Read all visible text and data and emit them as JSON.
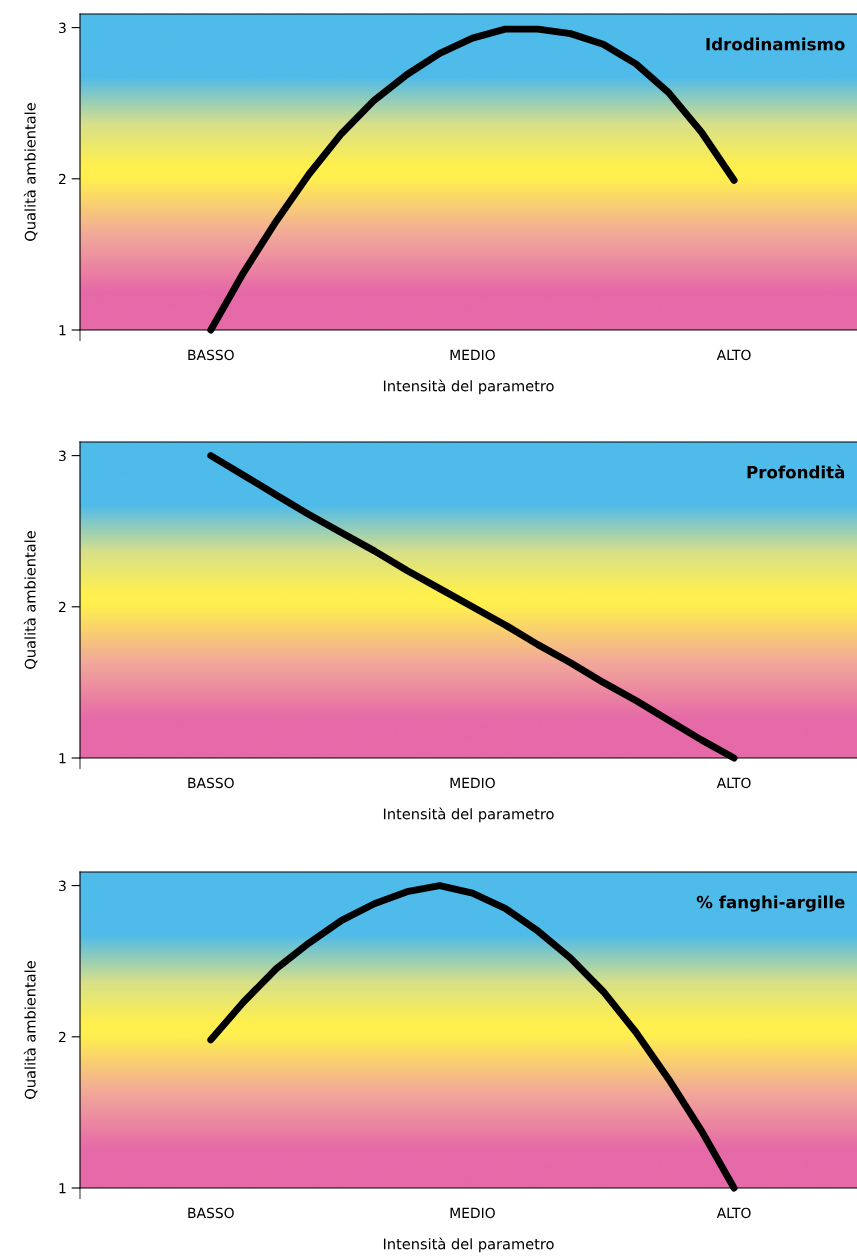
{
  "chart_data": [
    {
      "type": "line",
      "title": "Idrodinamismo",
      "xlabel": "Intensità del parametro",
      "ylabel": "Qualità ambientale",
      "ylim": [
        1,
        3.09
      ],
      "yticks": [
        1,
        2,
        3
      ],
      "grid": false,
      "marker": "none",
      "line_style": "solid",
      "categories": [
        "BASSO",
        null,
        null,
        null,
        null,
        null,
        null,
        null,
        "MEDIO",
        null,
        null,
        null,
        null,
        null,
        null,
        null,
        "ALTO"
      ],
      "series": [
        {
          "color": "#000000",
          "values": [
            1,
            1.38,
            1.72,
            2.03,
            2.3,
            2.52,
            2.69,
            2.83,
            2.93,
            2.99,
            2.99,
            2.96,
            2.89,
            2.76,
            2.57,
            2.31,
            1.99
          ]
        }
      ]
    },
    {
      "type": "line",
      "title": "Profondità",
      "xlabel": "Intensità del parametro",
      "ylabel": "Qualità ambientale",
      "ylim": [
        1,
        3.09
      ],
      "yticks": [
        1,
        2,
        3
      ],
      "grid": false,
      "marker": "none",
      "line_style": "solid",
      "categories": [
        "BASSO",
        null,
        null,
        null,
        null,
        null,
        null,
        null,
        "MEDIO",
        null,
        null,
        null,
        null,
        null,
        null,
        null,
        "ALTO"
      ],
      "series": [
        {
          "color": "#000000",
          "values": [
            3,
            2.87,
            2.74,
            2.61,
            2.49,
            2.37,
            2.24,
            2.12,
            2,
            1.88,
            1.75,
            1.63,
            1.5,
            1.38,
            1.25,
            1.12,
            1
          ]
        }
      ]
    },
    {
      "type": "line",
      "title": "% fanghi-argille",
      "xlabel": "Intensità del parametro",
      "ylabel": "Qualità ambientale",
      "ylim": [
        1,
        3.09
      ],
      "yticks": [
        1,
        2,
        3
      ],
      "grid": false,
      "marker": "none",
      "line_style": "solid",
      "categories": [
        "BASSO",
        null,
        null,
        null,
        null,
        null,
        null,
        null,
        "MEDIO",
        null,
        null,
        null,
        null,
        null,
        null,
        null,
        "ALTO"
      ],
      "series": [
        {
          "color": "#000000",
          "values": [
            1.98,
            2.23,
            2.45,
            2.62,
            2.77,
            2.88,
            2.96,
            3,
            2.95,
            2.85,
            2.7,
            2.52,
            2.3,
            2.03,
            1.72,
            1.38,
            1
          ]
        }
      ]
    }
  ]
}
